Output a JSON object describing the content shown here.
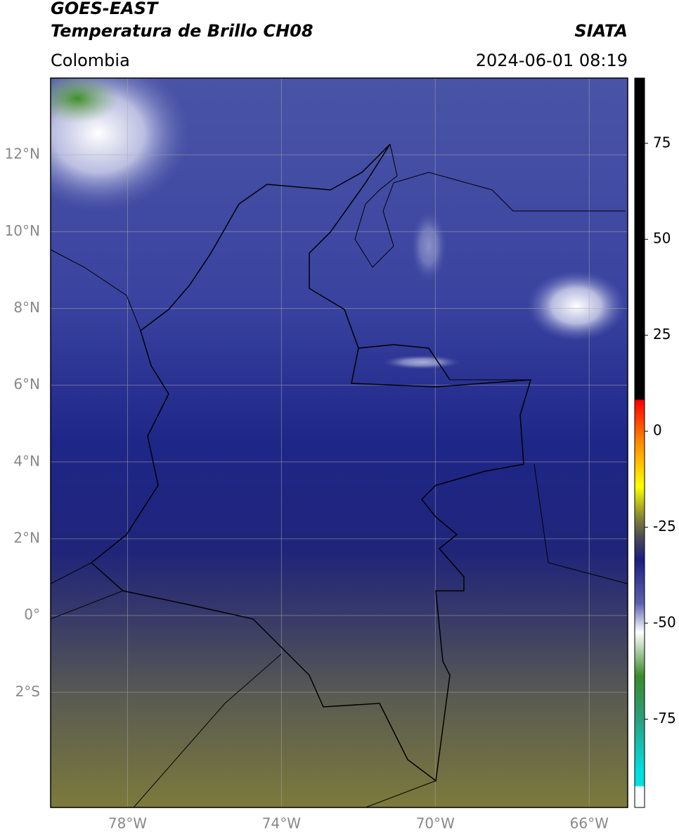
{
  "header": {
    "title": "GOES-EAST",
    "subtitle": "Temperatura de Brillo CH08",
    "source": "SIATA",
    "region": "Colombia",
    "datetime": "2024-06-01 08:19"
  },
  "map": {
    "xlim": [
      -80,
      -65
    ],
    "ylim": [
      -5,
      14
    ],
    "xticks": [
      {
        "value": -78,
        "label": "78°W"
      },
      {
        "value": -74,
        "label": "74°W"
      },
      {
        "value": -70,
        "label": "70°W"
      },
      {
        "value": -66,
        "label": "66°W"
      }
    ],
    "yticks": [
      {
        "value": 12,
        "label": "12°N"
      },
      {
        "value": 10,
        "label": "10°N"
      },
      {
        "value": 8,
        "label": "8°N"
      },
      {
        "value": 6,
        "label": "6°N"
      },
      {
        "value": 4,
        "label": "4°N"
      },
      {
        "value": 2,
        "label": "2°N"
      },
      {
        "value": 0,
        "label": "0°"
      },
      {
        "value": -2,
        "label": "2°S"
      }
    ],
    "grid": true
  },
  "colorbar": {
    "lim": [
      -98,
      92
    ],
    "ticks": [
      75,
      50,
      25,
      0,
      -25,
      -50,
      -75
    ]
  }
}
